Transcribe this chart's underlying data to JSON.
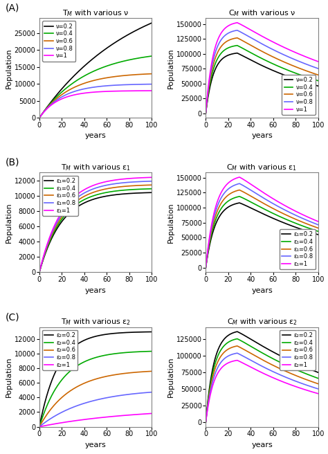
{
  "colors": [
    "black",
    "#00aa00",
    "#cc6600",
    "#6666ff",
    "#ff00ff"
  ],
  "param_values": [
    0.2,
    0.4,
    0.6,
    0.8,
    1.0
  ],
  "panel_A": {
    "left_title": "T$_M$ with various ν",
    "right_title": "C$_M$ with various ν",
    "left_ylabel": "Population",
    "right_ylabel": "Population",
    "xlabel": "years",
    "left_legend_labels": [
      "ν=0.2",
      "ν=0.4",
      "ν=0.6",
      "ν=0.8",
      "ν=1"
    ],
    "right_legend_labels": [
      "ν=0.2",
      "ν=0.4",
      "ν=0.6",
      "ν=0.8",
      "ν=1"
    ]
  },
  "panel_B": {
    "left_title": "T$_M$ with various ε$_1$",
    "right_title": "C$_M$ with various ε$_1$",
    "left_ylabel": "Population",
    "right_ylabel": "Population",
    "xlabel": "years",
    "left_legend_labels": [
      "ε₁=0.2",
      "ε₁=0.4",
      "ε₁=0.6",
      "ε₁=0.8",
      "ε₁=1"
    ],
    "right_legend_labels": [
      "ε₁=0.2",
      "ε₁=0.4",
      "ε₁=0.6",
      "ε₁=0.8",
      "ε₁=1"
    ]
  },
  "panel_C": {
    "left_title": "T$_M$ with various ε$_2$",
    "right_title": "C$_M$ with various ε$_2$",
    "left_ylabel": "Population",
    "right_ylabel": "Population",
    "xlabel": "years",
    "left_legend_labels": [
      "ε₂=0.2",
      "ε₂=0.4",
      "ε₂=0.6",
      "ε₂=0.8",
      "ε₂=1"
    ],
    "right_legend_labels": [
      "ε₂=0.2",
      "ε₂=0.4",
      "ε₂=0.6",
      "ε₂=0.8",
      "ε₂=1"
    ]
  }
}
